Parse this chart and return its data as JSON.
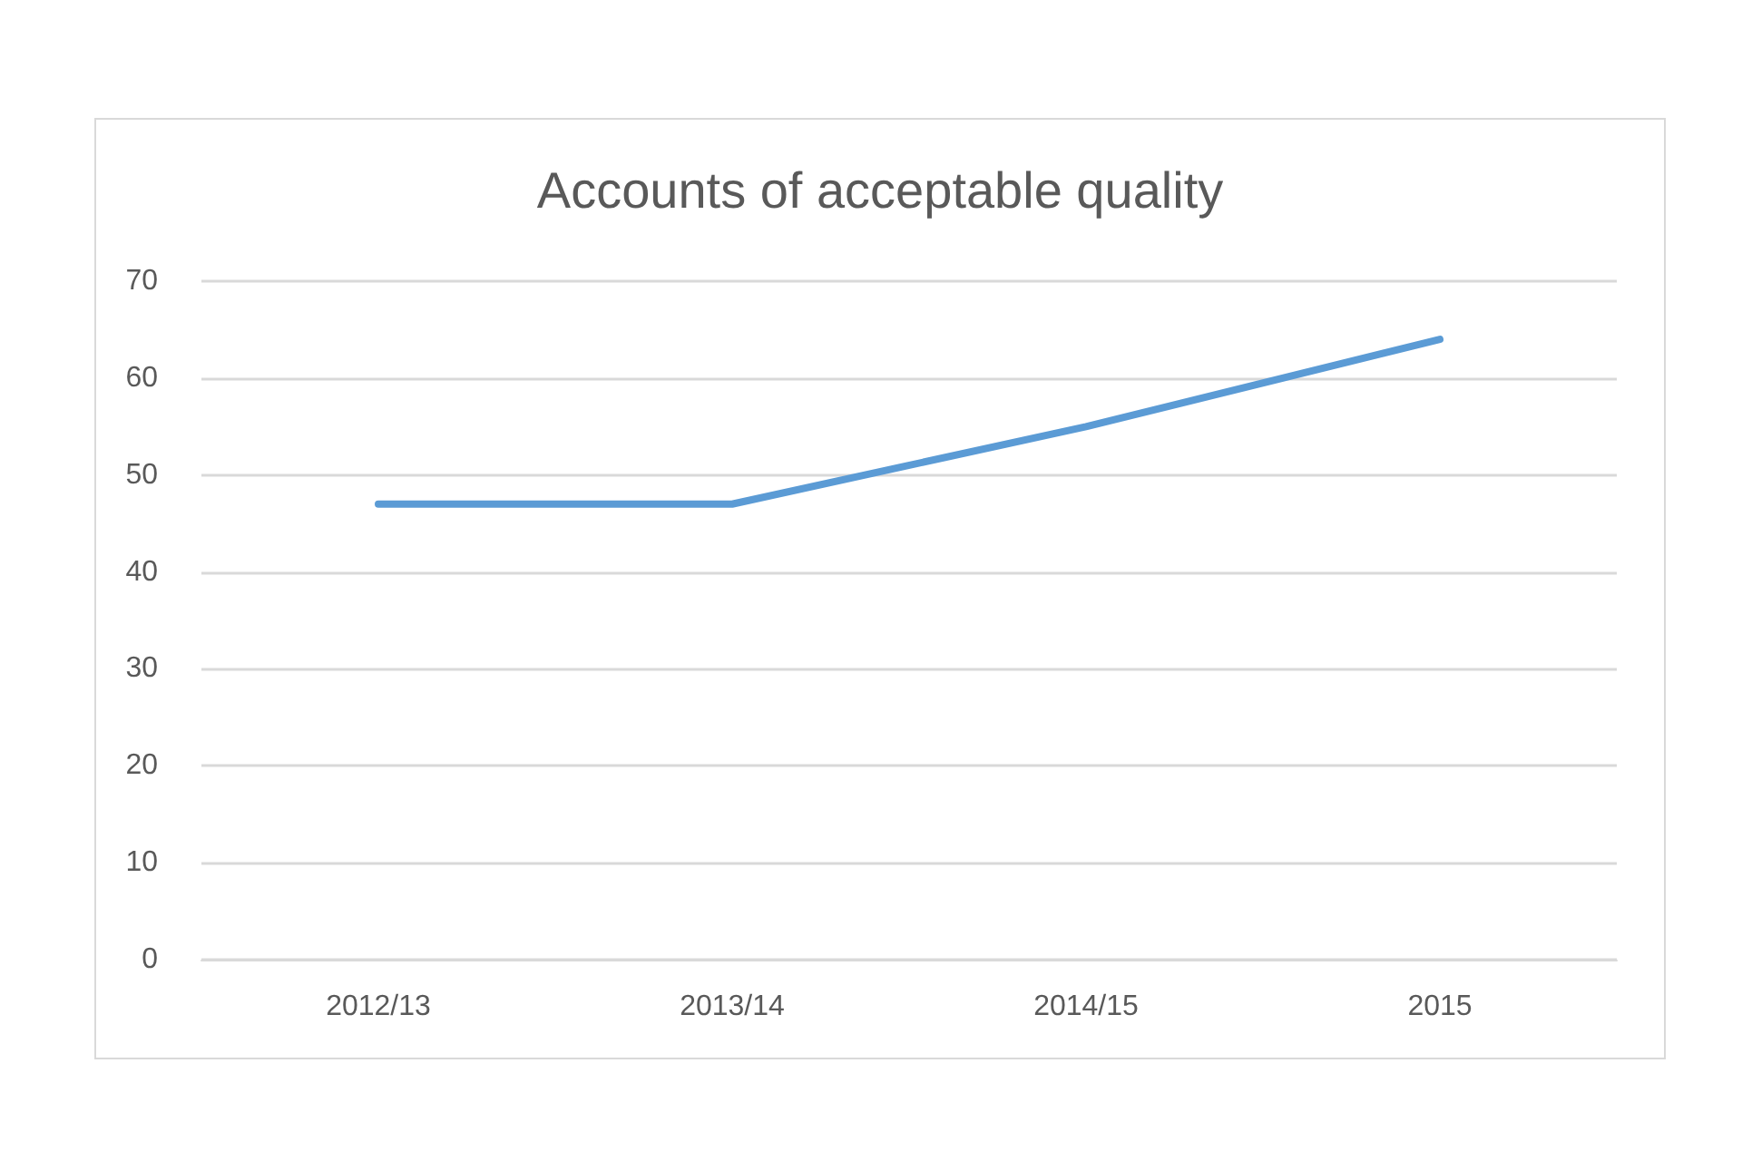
{
  "chart_data": {
    "type": "line",
    "title": "Accounts of acceptable quality",
    "categories": [
      "2012/13",
      "2013/14",
      "2014/15",
      "2015"
    ],
    "series": [
      {
        "color": "#5b9bd5",
        "values": [
          47,
          47,
          55,
          64
        ]
      }
    ],
    "ylim": [
      0,
      70
    ],
    "yticks": [
      0,
      10,
      20,
      30,
      40,
      50,
      60,
      70
    ],
    "grid": "y",
    "marker": "none",
    "line_style": "solid"
  }
}
